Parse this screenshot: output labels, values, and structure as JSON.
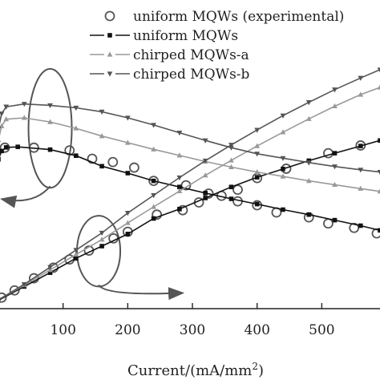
{
  "chart_data": {
    "type": "line",
    "x_unit_label": "Current/(mA/mm",
    "x_unit_superscript": "2",
    "x_unit_close": ")",
    "xlim": [
      0,
      590
    ],
    "x_ticks": [
      100,
      200,
      300,
      400,
      500
    ],
    "y_range": [
      0,
      1
    ],
    "grid": false,
    "legend_position": "top-right",
    "series": [
      {
        "name": "uniform MQWs (experimental)",
        "marker": "circle",
        "line": false,
        "color": "#555555",
        "efficiency": [
          [
            10,
            0.582
          ],
          [
            55,
            0.582
          ],
          [
            110,
            0.572
          ],
          [
            145,
            0.542
          ],
          [
            177,
            0.53
          ],
          [
            210,
            0.51
          ],
          [
            240,
            0.462
          ],
          [
            290,
            0.446
          ],
          [
            325,
            0.416
          ],
          [
            370,
            0.388
          ],
          [
            400,
            0.374
          ],
          [
            430,
            0.348
          ],
          [
            480,
            0.33
          ],
          [
            510,
            0.308
          ],
          [
            550,
            0.292
          ],
          [
            585,
            0.272
          ]
        ],
        "power": [
          [
            5,
            0.04
          ],
          [
            25,
            0.066
          ],
          [
            55,
            0.11
          ],
          [
            85,
            0.148
          ],
          [
            110,
            0.178
          ],
          [
            140,
            0.21
          ],
          [
            178,
            0.254
          ],
          [
            200,
            0.278
          ],
          [
            245,
            0.34
          ],
          [
            285,
            0.356
          ],
          [
            310,
            0.384
          ],
          [
            345,
            0.408
          ],
          [
            370,
            0.43
          ],
          [
            400,
            0.472
          ],
          [
            445,
            0.506
          ],
          [
            510,
            0.562
          ],
          [
            560,
            0.59
          ]
        ]
      },
      {
        "name": "uniform MQWs",
        "marker": "square",
        "line": true,
        "color": "#111111",
        "efficiency": [
          [
            0,
            0.54
          ],
          [
            5,
            0.57
          ],
          [
            12,
            0.583
          ],
          [
            30,
            0.585
          ],
          [
            80,
            0.575
          ],
          [
            120,
            0.553
          ],
          [
            160,
            0.515
          ],
          [
            200,
            0.49
          ],
          [
            240,
            0.462
          ],
          [
            280,
            0.44
          ],
          [
            320,
            0.418
          ],
          [
            360,
            0.397
          ],
          [
            400,
            0.378
          ],
          [
            440,
            0.358
          ],
          [
            480,
            0.34
          ],
          [
            520,
            0.32
          ],
          [
            560,
            0.3
          ],
          [
            590,
            0.283
          ]
        ],
        "power": [
          [
            0,
            0.03
          ],
          [
            40,
            0.08
          ],
          [
            80,
            0.13
          ],
          [
            120,
            0.182
          ],
          [
            160,
            0.226
          ],
          [
            200,
            0.27
          ],
          [
            240,
            0.326
          ],
          [
            280,
            0.36
          ],
          [
            320,
            0.4
          ],
          [
            360,
            0.44
          ],
          [
            400,
            0.475
          ],
          [
            440,
            0.505
          ],
          [
            480,
            0.535
          ],
          [
            520,
            0.562
          ],
          [
            560,
            0.588
          ],
          [
            590,
            0.608
          ]
        ]
      },
      {
        "name": "chirped MQWs-a",
        "marker": "triangle-up",
        "line": true,
        "color": "#999999",
        "efficiency": [
          [
            0,
            0.61
          ],
          [
            5,
            0.66
          ],
          [
            12,
            0.685
          ],
          [
            40,
            0.69
          ],
          [
            80,
            0.675
          ],
          [
            120,
            0.652
          ],
          [
            160,
            0.624
          ],
          [
            200,
            0.6
          ],
          [
            240,
            0.576
          ],
          [
            280,
            0.554
          ],
          [
            320,
            0.532
          ],
          [
            360,
            0.512
          ],
          [
            400,
            0.494
          ],
          [
            440,
            0.478
          ],
          [
            480,
            0.462
          ],
          [
            520,
            0.448
          ],
          [
            560,
            0.434
          ],
          [
            590,
            0.424
          ]
        ],
        "power": [
          [
            0,
            0.032
          ],
          [
            40,
            0.085
          ],
          [
            80,
            0.14
          ],
          [
            120,
            0.196
          ],
          [
            160,
            0.25
          ],
          [
            200,
            0.31
          ],
          [
            240,
            0.368
          ],
          [
            280,
            0.425
          ],
          [
            320,
            0.482
          ],
          [
            360,
            0.536
          ],
          [
            400,
            0.588
          ],
          [
            440,
            0.638
          ],
          [
            480,
            0.686
          ],
          [
            520,
            0.732
          ],
          [
            560,
            0.774
          ],
          [
            590,
            0.8
          ]
        ]
      },
      {
        "name": "chirped MQWs-b",
        "marker": "triangle-down",
        "line": true,
        "color": "#555555",
        "efficiency": [
          [
            0,
            0.65
          ],
          [
            5,
            0.705
          ],
          [
            12,
            0.73
          ],
          [
            40,
            0.74
          ],
          [
            80,
            0.735
          ],
          [
            120,
            0.726
          ],
          [
            160,
            0.712
          ],
          [
            200,
            0.69
          ],
          [
            240,
            0.664
          ],
          [
            280,
            0.636
          ],
          [
            320,
            0.608
          ],
          [
            360,
            0.582
          ],
          [
            400,
            0.56
          ],
          [
            440,
            0.544
          ],
          [
            480,
            0.528
          ],
          [
            520,
            0.514
          ],
          [
            560,
            0.502
          ],
          [
            590,
            0.494
          ]
        ],
        "power": [
          [
            0,
            0.032
          ],
          [
            40,
            0.088
          ],
          [
            80,
            0.15
          ],
          [
            120,
            0.212
          ],
          [
            160,
            0.274
          ],
          [
            200,
            0.346
          ],
          [
            240,
            0.41
          ],
          [
            280,
            0.474
          ],
          [
            320,
            0.535
          ],
          [
            360,
            0.592
          ],
          [
            400,
            0.646
          ],
          [
            440,
            0.698
          ],
          [
            480,
            0.746
          ],
          [
            520,
            0.792
          ],
          [
            560,
            0.834
          ],
          [
            590,
            0.864
          ]
        ]
      }
    ],
    "annotations": [
      {
        "shape": "ellipse",
        "center_x": 80,
        "center_y": 0.652,
        "rx": 27,
        "ry": 0.215,
        "arrow": "left"
      },
      {
        "shape": "ellipse",
        "center_x": 155,
        "center_y": 0.208,
        "rx": 27,
        "ry": 0.128,
        "arrow": "right"
      }
    ]
  }
}
